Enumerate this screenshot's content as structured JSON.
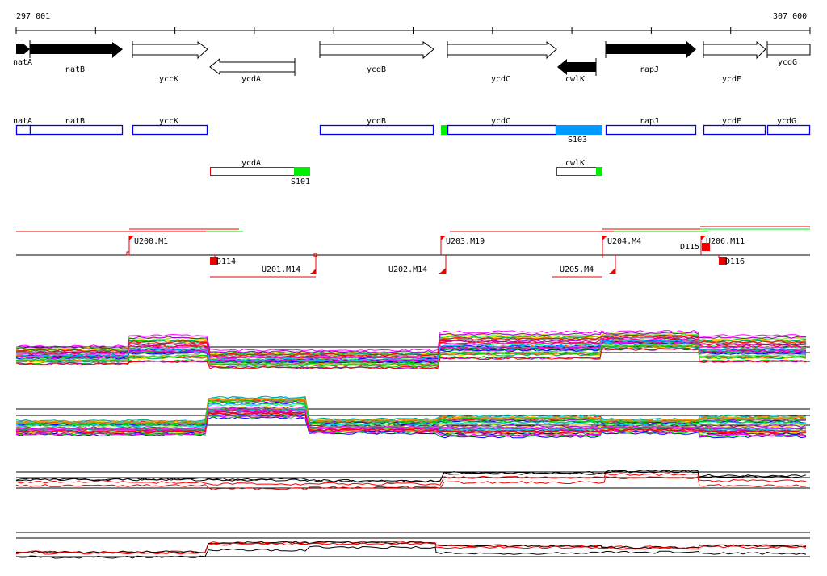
{
  "ruler": {
    "start_label": "297 001",
    "end_label": "307 000",
    "start": 297001,
    "end": 307000
  },
  "genes": [
    {
      "name": "natA",
      "strand": "+",
      "fill": "black"
    },
    {
      "name": "natB",
      "strand": "+",
      "fill": "black"
    },
    {
      "name": "yccK",
      "strand": "+",
      "fill": "white"
    },
    {
      "name": "ycdA",
      "strand": "-",
      "fill": "white"
    },
    {
      "name": "ycdB",
      "strand": "+",
      "fill": "white"
    },
    {
      "name": "ycdC",
      "strand": "+",
      "fill": "white"
    },
    {
      "name": "cwlK",
      "strand": "-",
      "fill": "black"
    },
    {
      "name": "rapJ",
      "strand": "+",
      "fill": "black"
    },
    {
      "name": "ycdF",
      "strand": "+",
      "fill": "white"
    },
    {
      "name": "ycdG",
      "strand": "+",
      "fill": "white"
    }
  ],
  "plus_features": {
    "labels": [
      "natA",
      "natB",
      "yccK",
      "ycdB",
      "ycdC",
      "rapJ",
      "ycdF",
      "ycdG"
    ],
    "segment_label": "S103"
  },
  "minus_features": {
    "labels": [
      "ycdA",
      "cwlK"
    ],
    "segment_label": "S101"
  },
  "markers": {
    "up": [
      "U200.M1",
      "U203.M19",
      "U204.M4",
      "U206.M11"
    ],
    "down": [
      "U201.M14",
      "U202.M14",
      "U205.M4"
    ],
    "d_sites": [
      "D114",
      "D115",
      "D116"
    ]
  },
  "colors": {
    "blue": "#0000ee",
    "cyan": "#0099ff",
    "green": "#00ee00",
    "red": "#ee0000"
  }
}
